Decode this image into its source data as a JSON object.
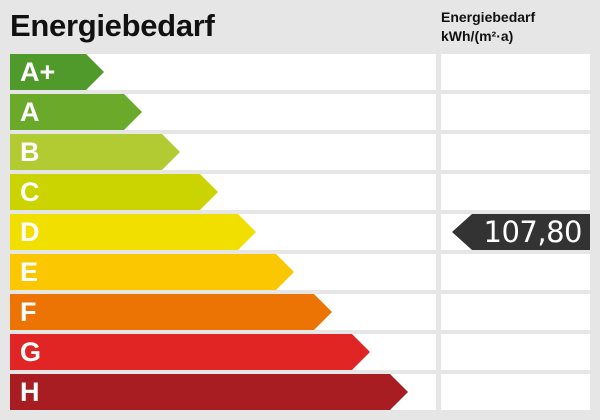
{
  "header": {
    "title": "Energiebedarf",
    "column_title_line1": "Energiebedarf",
    "column_title_line2": "kWh/(m²·a)"
  },
  "classes": [
    {
      "label": "A+",
      "color": "#4f9a2a"
    },
    {
      "label": "A",
      "color": "#6ba92b"
    },
    {
      "label": "B",
      "color": "#b3cb33"
    },
    {
      "label": "C",
      "color": "#cbd300"
    },
    {
      "label": "D",
      "color": "#f1df00"
    },
    {
      "label": "E",
      "color": "#fbc700"
    },
    {
      "label": "F",
      "color": "#ec7404"
    },
    {
      "label": "G",
      "color": "#e12525"
    },
    {
      "label": "H",
      "color": "#a71d22"
    }
  ],
  "indicator": {
    "value": "107,80",
    "class": "D",
    "color": "#333333"
  }
}
